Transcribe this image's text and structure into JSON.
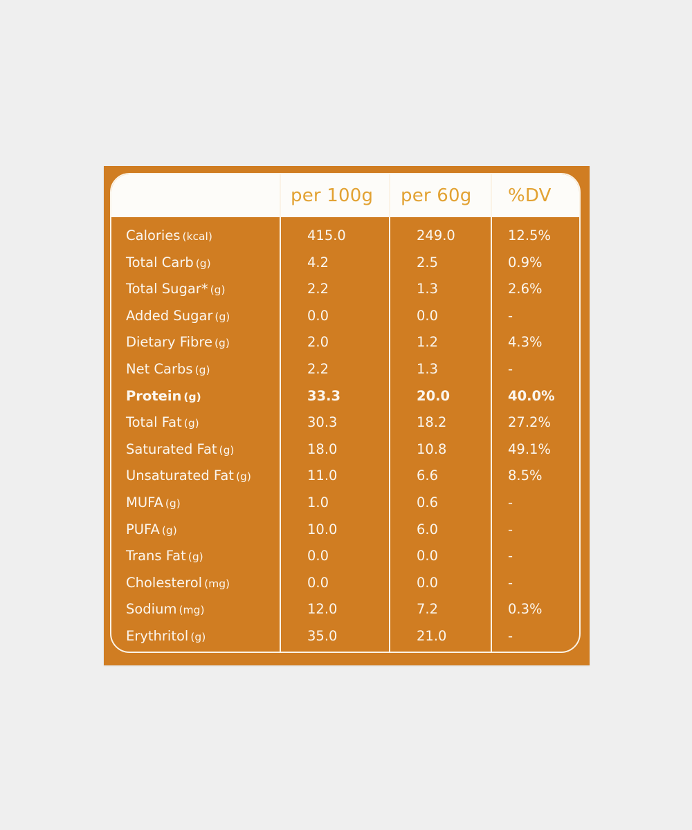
{
  "header": {
    "col_per100": "per 100g",
    "col_per60": "per 60g",
    "col_dv": "%DV"
  },
  "rows": [
    {
      "name": "Calories",
      "unit": "(kcal)",
      "per100": "415.0",
      "per60": "249.0",
      "dv": "12.5%"
    },
    {
      "name": "Total Carb",
      "unit": "(g)",
      "per100": "4.2",
      "per60": "2.5",
      "dv": "0.9%"
    },
    {
      "name": "Total Sugar*",
      "unit": "(g)",
      "per100": "2.2",
      "per60": "1.3",
      "dv": "2.6%"
    },
    {
      "name": "Added Sugar",
      "unit": "(g)",
      "per100": "0.0",
      "per60": "0.0",
      "dv": "-"
    },
    {
      "name": "Dietary Fibre",
      "unit": "(g)",
      "per100": "2.0",
      "per60": "1.2",
      "dv": "4.3%"
    },
    {
      "name": "Net Carbs",
      "unit": "(g)",
      "per100": "2.2",
      "per60": "1.3",
      "dv": "-"
    },
    {
      "name": "Protein",
      "unit": "(g)",
      "per100": "33.3",
      "per60": "20.0",
      "dv": "40.0%"
    },
    {
      "name": "Total Fat",
      "unit": "(g)",
      "per100": "30.3",
      "per60": "18.2",
      "dv": "27.2%"
    },
    {
      "name": "Saturated Fat",
      "unit": "(g)",
      "per100": "18.0",
      "per60": "10.8",
      "dv": "49.1%"
    },
    {
      "name": "Unsaturated Fat",
      "unit": "(g)",
      "per100": "11.0",
      "per60": "6.6",
      "dv": "8.5%"
    },
    {
      "name": "MUFA",
      "unit": "(g)",
      "per100": "1.0",
      "per60": "0.6",
      "dv": "-"
    },
    {
      "name": "PUFA",
      "unit": "(g)",
      "per100": "10.0",
      "per60": "6.0",
      "dv": "-"
    },
    {
      "name": "Trans Fat",
      "unit": "(g)",
      "per100": "0.0",
      "per60": "0.0",
      "dv": "-"
    },
    {
      "name": "Cholesterol",
      "unit": "(mg)",
      "per100": "0.0",
      "per60": "0.0",
      "dv": "-"
    },
    {
      "name": "Sodium",
      "unit": "(mg)",
      "per100": "12.0",
      "per60": "7.2",
      "dv": "0.3%"
    },
    {
      "name": "Erythritol",
      "unit": "(g)",
      "per100": "35.0",
      "per60": "21.0",
      "dv": "-"
    }
  ],
  "colors": {
    "card_background": "#d07d22",
    "header_band": "#fdfcf9",
    "header_text": "#e2a233",
    "body_text": "#fbf6ee",
    "page_background": "#efefef"
  }
}
